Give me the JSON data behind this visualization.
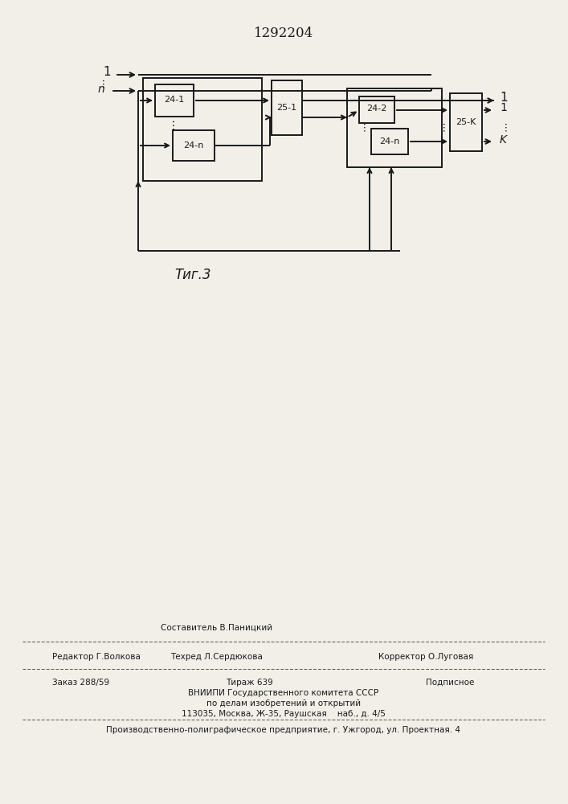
{
  "title": "1292204",
  "fig_label": "Τиг.3",
  "background_color": "#f2efe9",
  "line_color": "#1a1a1a",
  "box_fill": "#f2efe9",
  "footer_comp": "Составитель В.Паницкий",
  "footer_tech": "Техред Л.Сердюкова",
  "footer_ed": "Редактор Г.Волкова",
  "footer_corr": "Корректор О.Луговая",
  "footer_order": "Заказ 288/59",
  "footer_copies": "Тираж 639",
  "footer_sub": "Подписное",
  "footer_org": "ВНИИПИ Государственного комитета СССР",
  "footer_dept": "по делам изобретений и открытий",
  "footer_addr": "113035, Москва, Ж-35, Раушская    наб., д. 4/5",
  "footer_print": "Производственно-полиграфическое предприятие, г. Ужгород, ул. Проектная. 4"
}
